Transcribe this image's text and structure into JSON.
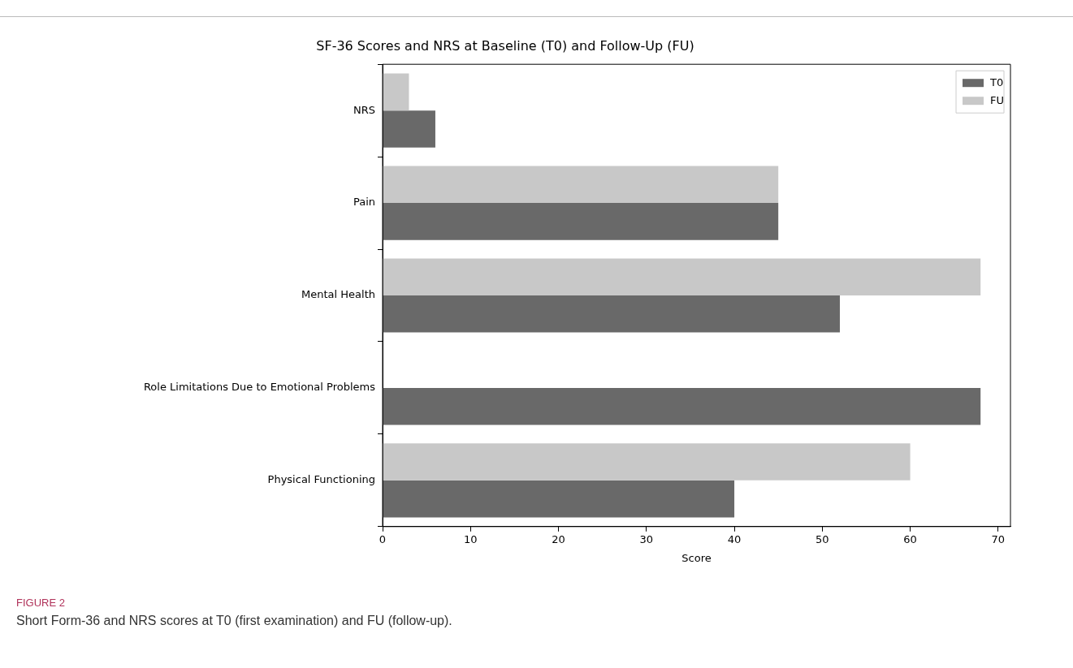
{
  "chart_data": {
    "type": "bar",
    "orientation": "horizontal",
    "title": "SF-36 Scores and NRS at Baseline (T0) and Follow-Up (FU)",
    "xlabel": "Score",
    "categories": [
      "NRS",
      "Pain",
      "Mental Health",
      "Role Limitations Due to Emotional Problems",
      "Physical Functioning"
    ],
    "series": [
      {
        "name": "T0",
        "color": "#696969",
        "values": [
          6,
          45,
          52,
          68,
          40
        ]
      },
      {
        "name": "FU",
        "color": "#c8c8c8",
        "values": [
          3,
          45,
          68,
          0,
          60
        ]
      }
    ],
    "xlim": [
      0,
      71.4
    ],
    "xticks": [
      0,
      10,
      20,
      30,
      40,
      50,
      60,
      70
    ],
    "grid": false,
    "legend": "top right",
    "annotations": [
      "FIGURE 2",
      "Short Form-36 and NRS scores at T0 (first examination) and FU (follow-up)."
    ]
  }
}
